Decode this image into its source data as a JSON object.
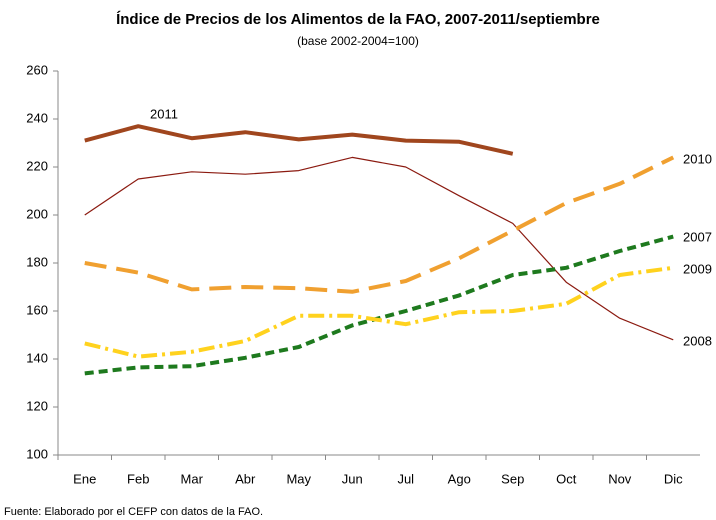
{
  "chart_data": {
    "type": "line",
    "title": "Índice de Precios de los Alimentos de la FAO, 2007-2011/septiembre",
    "subtitle": "(base 2002-2004=100)",
    "source": "Fuente: Elaborado por el CEFP con datos de la FAO.",
    "categories": [
      "Ene",
      "Feb",
      "Mar",
      "Abr",
      "May",
      "Jun",
      "Jul",
      "Ago",
      "Sep",
      "Oct",
      "Nov",
      "Dic"
    ],
    "ylim": [
      100,
      260
    ],
    "yticks": [
      100,
      120,
      140,
      160,
      180,
      200,
      220,
      240,
      260
    ],
    "series": [
      {
        "name": "2011",
        "color": "#a0461e",
        "style": "solid",
        "width": 4,
        "values": [
          231,
          237,
          232,
          234.5,
          231.5,
          233.5,
          231,
          230.5,
          225.5,
          null,
          null,
          null
        ]
      },
      {
        "name": "2008",
        "color": "#8b1a10",
        "style": "solid",
        "width": 1.2,
        "values": [
          200,
          215,
          218,
          217,
          218.5,
          224,
          220,
          208,
          196.5,
          172,
          157,
          148
        ]
      },
      {
        "name": "2010",
        "color": "#f0a030",
        "style": "dashed",
        "width": 4,
        "values": [
          180,
          176,
          169,
          170,
          169.5,
          168,
          172.5,
          182,
          193.5,
          205,
          213,
          224
        ]
      },
      {
        "name": "2007",
        "color": "#1e7a1e",
        "style": "dotted",
        "width": 4,
        "values": [
          134,
          136.5,
          137,
          140.5,
          145,
          154,
          160,
          166.5,
          175,
          178,
          185,
          191
        ]
      },
      {
        "name": "2009",
        "color": "#ffd21e",
        "style": "dashdot",
        "width": 4,
        "values": [
          146.5,
          141,
          143,
          147.5,
          158,
          158,
          154.5,
          159.5,
          160,
          163,
          175,
          178
        ]
      }
    ]
  }
}
